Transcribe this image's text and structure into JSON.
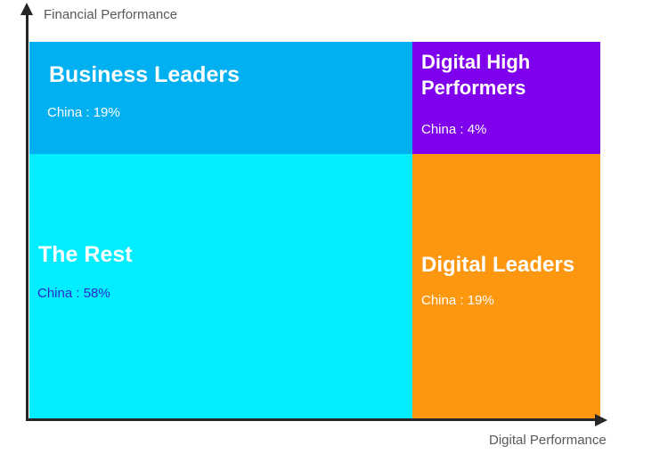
{
  "chart": {
    "y_axis_label": "Financial Performance",
    "x_axis_label": "Digital Performance",
    "axis_color": "#262626",
    "axis_label_color": "#595959",
    "quadrants": [
      {
        "id": "business-leaders",
        "grid_position": "top-left",
        "title": "Business Leaders",
        "value_label": "China : 19%",
        "bg_color": "#00b0f0",
        "title_color": "#ffffff",
        "value_color": "#ffffff"
      },
      {
        "id": "digital-high-performers",
        "grid_position": "top-right",
        "title": "Digital High Performers",
        "value_label": "China : 4%",
        "bg_color": "#7e00ec",
        "title_color": "#ffffff",
        "value_color": "#ffffff"
      },
      {
        "id": "the-rest",
        "grid_position": "bottom-left",
        "title": "The Rest",
        "value_label": "China : 58%",
        "bg_color": "#00eeff",
        "title_color": "#ffffff",
        "value_color": "#2d2dcd"
      },
      {
        "id": "digital-leaders",
        "grid_position": "bottom-right",
        "title": "Digital Leaders",
        "value_label": "China : 19%",
        "bg_color": "#fc970f",
        "title_color": "#ffffff",
        "value_color": "#ffffff"
      }
    ]
  },
  "chart_data": {
    "type": "heatmap",
    "title": "",
    "xlabel": "Digital Performance",
    "ylabel": "Financial Performance",
    "categories": [
      "Business Leaders",
      "Digital High Performers",
      "The Rest",
      "Digital Leaders"
    ],
    "series": [
      {
        "name": "China",
        "values": [
          19,
          4,
          58,
          19
        ]
      }
    ],
    "cells": [
      {
        "segment": "Business Leaders",
        "grid_position": "top-left",
        "color": "#00b0f0",
        "china_pct": 19
      },
      {
        "segment": "Digital High Performers",
        "grid_position": "top-right",
        "color": "#7e00ec",
        "china_pct": 4
      },
      {
        "segment": "The Rest",
        "grid_position": "bottom-left",
        "color": "#00eeff",
        "china_pct": 58
      },
      {
        "segment": "Digital Leaders",
        "grid_position": "bottom-right",
        "color": "#fc970f",
        "china_pct": 19
      }
    ],
    "legend_position": "none",
    "grid_lines": "off"
  }
}
